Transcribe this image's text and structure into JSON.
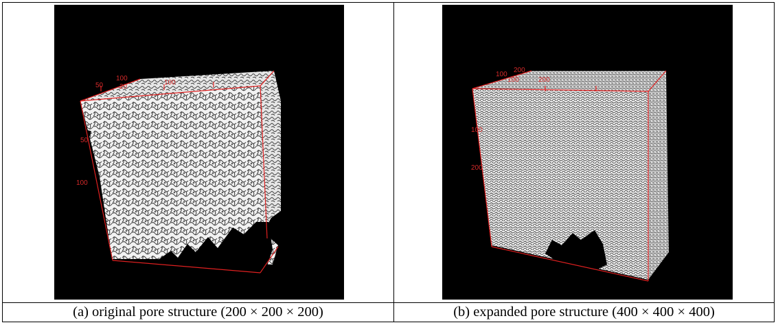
{
  "figure": {
    "panel_a": {
      "caption": "(a) original pore structure (200 × 200 × 200)",
      "axis_ticks": [
        "50",
        "100",
        "20",
        "100",
        "50",
        "100"
      ]
    },
    "panel_b": {
      "caption": "(b) expanded pore structure (400 × 400 × 400)",
      "axis_ticks": [
        "100",
        "200",
        "100",
        "200",
        "100",
        "200"
      ]
    },
    "colors": {
      "background": "#000000",
      "solid": "#ffffff",
      "bounding_box": "#e02020"
    }
  }
}
